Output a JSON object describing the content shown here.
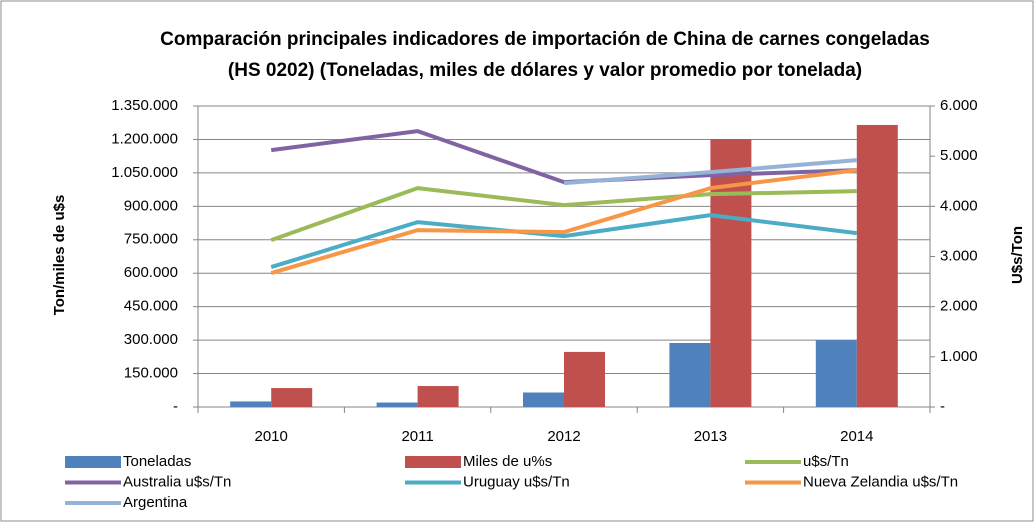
{
  "chart_data": {
    "type": "combo",
    "title": "Comparación principales indicadores de importación de China de carnes congeladas (HS 0202) (Toneladas, miles de dólares y valor promedio por tonelada)",
    "ylabel": "Ton/miles de u$s",
    "y2label": "U$s/Ton",
    "categories": [
      "2010",
      "2011",
      "2012",
      "2013",
      "2014"
    ],
    "ylim": [
      0,
      1350000
    ],
    "yticks": [
      {
        "value": 0,
        "label": "-"
      },
      {
        "value": 150000,
        "label": "150.000"
      },
      {
        "value": 300000,
        "label": "300.000"
      },
      {
        "value": 450000,
        "label": "450.000"
      },
      {
        "value": 600000,
        "label": "600.000"
      },
      {
        "value": 750000,
        "label": "750.000"
      },
      {
        "value": 900000,
        "label": "900.000"
      },
      {
        "value": 1050000,
        "label": "1.050.000"
      },
      {
        "value": 1200000,
        "label": "1.200.000"
      },
      {
        "value": 1350000,
        "label": "1.350.000"
      }
    ],
    "y2lim": [
      0,
      6000
    ],
    "y2ticks": [
      {
        "value": 0,
        "label": "-"
      },
      {
        "value": 1000,
        "label": "1.000"
      },
      {
        "value": 2000,
        "label": "2.000"
      },
      {
        "value": 3000,
        "label": "3.000"
      },
      {
        "value": 4000,
        "label": "4.000"
      },
      {
        "value": 5000,
        "label": "5.000"
      },
      {
        "value": 6000,
        "label": "6.000"
      }
    ],
    "grid": true,
    "legend": "bottom",
    "series": [
      {
        "name": "Toneladas",
        "type": "bar",
        "color": "#4f81bd",
        "values": [
          25000,
          20000,
          65000,
          287000,
          300000
        ]
      },
      {
        "name": "Miles de u%s",
        "type": "bar",
        "color": "#c0504d",
        "values": [
          85000,
          94000,
          247000,
          1202000,
          1265000
        ]
      },
      {
        "name": "u$s/Tn",
        "type": "line",
        "axis": "y2",
        "color": "#9bbb59",
        "values": [
          3327,
          4363,
          4024,
          4243,
          4303
        ]
      },
      {
        "name": "Australia u$s/Tn",
        "type": "line",
        "axis": "y2",
        "color": "#8064a2",
        "values": [
          5120,
          5500,
          4482,
          4622,
          4721
        ]
      },
      {
        "name": "Uruguay u$s/Tn",
        "type": "line",
        "axis": "y2",
        "color": "#4bacc6",
        "values": [
          2789,
          3685,
          3406,
          3825,
          3466
        ]
      },
      {
        "name": "Nueva Zelandia u$s/Tn",
        "type": "line",
        "axis": "y2",
        "color": "#f79646",
        "values": [
          2669,
          3526,
          3486,
          4363,
          4721
        ]
      },
      {
        "name": "Argentina",
        "type": "line",
        "axis": "y2",
        "color": "#95b3d7",
        "values": [
          null,
          null,
          4462,
          4681,
          4920
        ]
      }
    ]
  }
}
